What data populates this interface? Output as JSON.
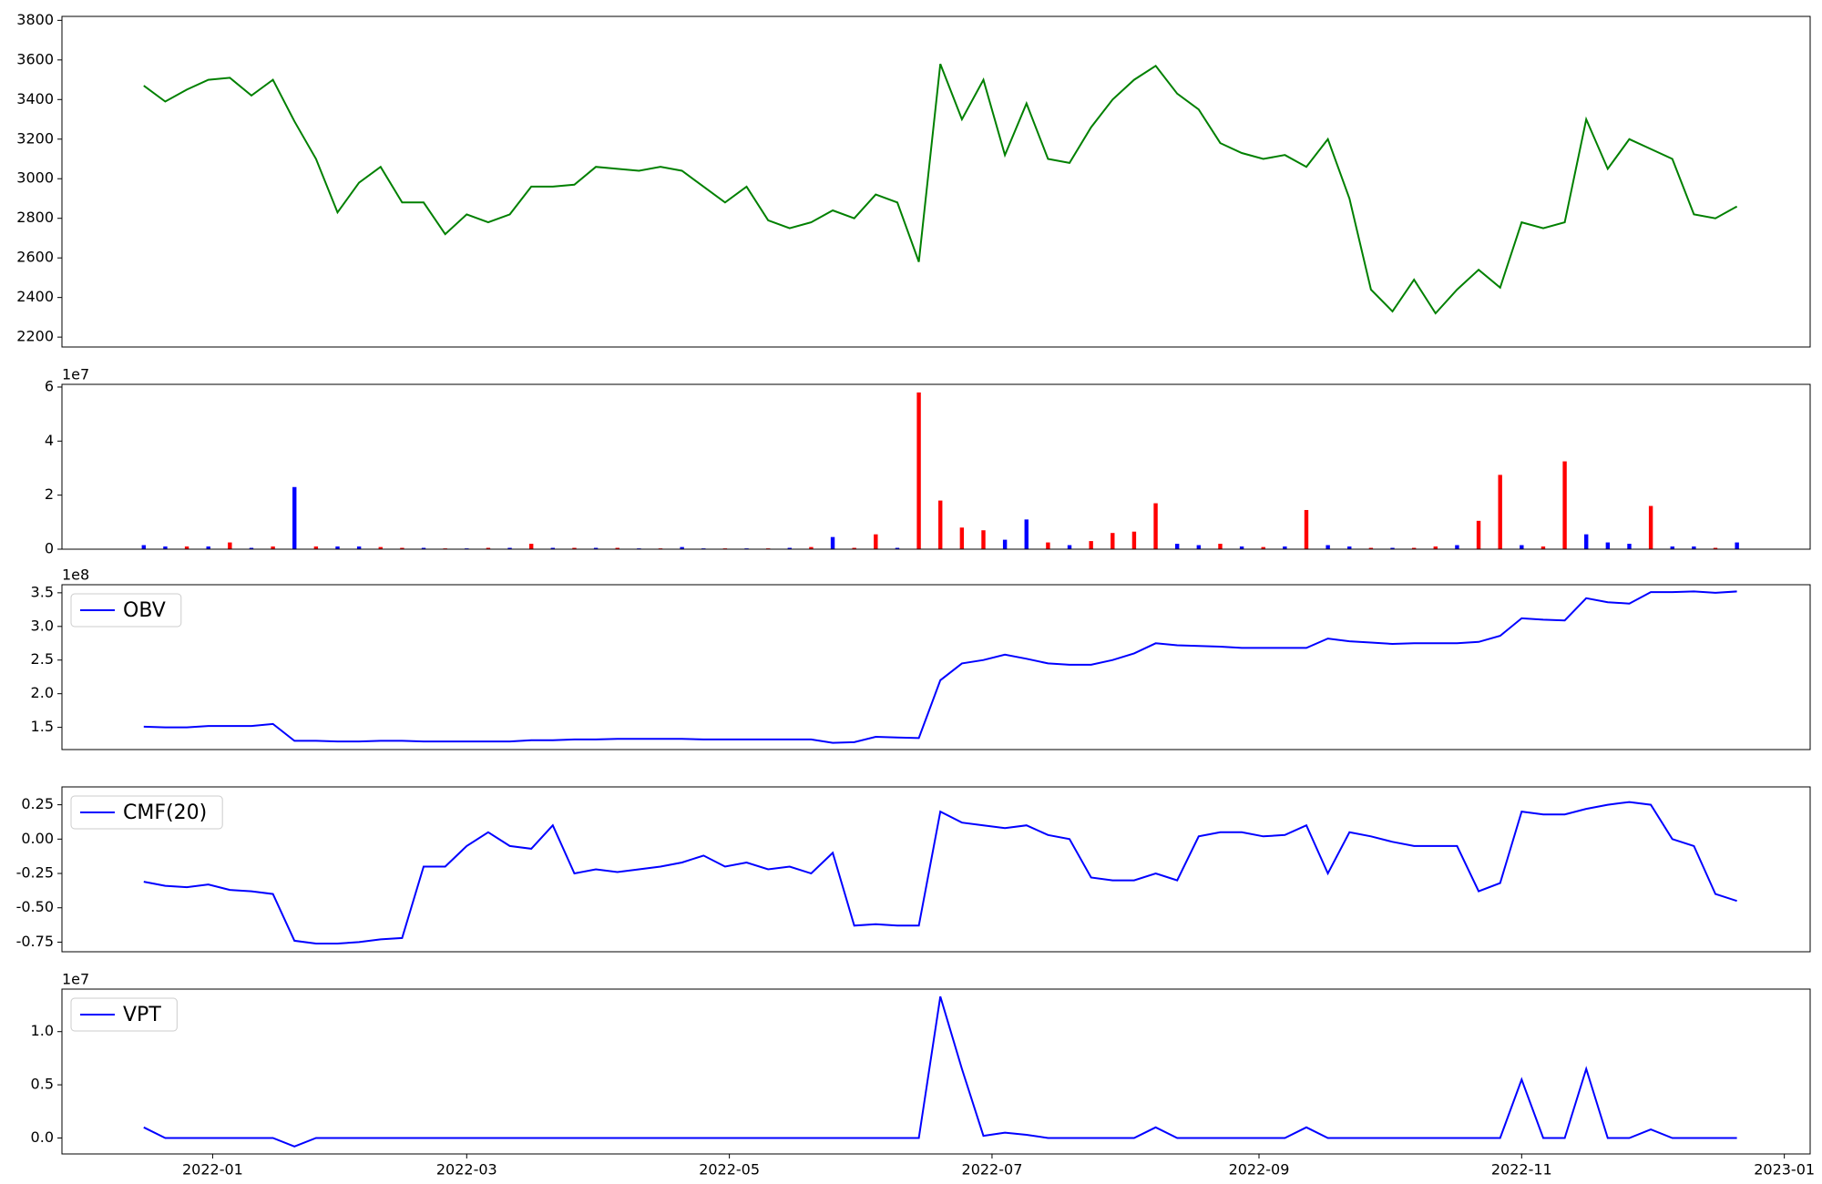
{
  "chart_data": [
    {
      "type": "line",
      "color": "green",
      "x": [
        -16,
        -11,
        -6,
        -1,
        4,
        9,
        14,
        19,
        24,
        29,
        34,
        39,
        44,
        49,
        54,
        59,
        64,
        69,
        74,
        79,
        84,
        89,
        94,
        99,
        104,
        109,
        114,
        119,
        124,
        129,
        134,
        139,
        144,
        149,
        154,
        159,
        164,
        169,
        174,
        179,
        184,
        189,
        194,
        199,
        204,
        209,
        214,
        219,
        224,
        229,
        234,
        239,
        244,
        249,
        254,
        259,
        264,
        269,
        274,
        279,
        284,
        289,
        294,
        299,
        304,
        309,
        314,
        319,
        324,
        329,
        334,
        339,
        344,
        349,
        354
      ],
      "values": [
        3470,
        3390,
        3450,
        3500,
        3510,
        3420,
        3500,
        3290,
        3100,
        2830,
        2980,
        3060,
        2880,
        2880,
        2720,
        2820,
        2780,
        2820,
        2960,
        2960,
        2970,
        3060,
        3050,
        3040,
        3060,
        3040,
        2960,
        2880,
        2960,
        2790,
        2750,
        2780,
        2840,
        2800,
        2920,
        2880,
        2580,
        3580,
        3300,
        3500,
        3120,
        3380,
        3100,
        3080,
        3260,
        3400,
        3500,
        3570,
        3430,
        3350,
        3180,
        3130,
        3100,
        3120,
        3060,
        3200,
        2900,
        2440,
        2330,
        2490,
        2320,
        2440,
        2540,
        2450,
        2780,
        2750,
        2780,
        3300,
        3050,
        3200,
        3150,
        3100,
        2820,
        2800,
        2860
      ],
      "xlim": [
        -35,
        371
      ],
      "ylim": [
        2150,
        3820
      ],
      "yticks": [
        2200,
        2400,
        2600,
        2800,
        3000,
        3200,
        3400,
        3600,
        3800
      ]
    },
    {
      "type": "bar",
      "offset_label": "1e7",
      "x": [
        -16,
        -11,
        -6,
        -1,
        4,
        9,
        14,
        19,
        24,
        29,
        34,
        39,
        44,
        49,
        54,
        59,
        64,
        69,
        74,
        79,
        84,
        89,
        94,
        99,
        104,
        109,
        114,
        119,
        124,
        129,
        134,
        139,
        144,
        149,
        154,
        159,
        164,
        169,
        174,
        179,
        184,
        189,
        194,
        199,
        204,
        209,
        214,
        219,
        224,
        229,
        234,
        239,
        244,
        249,
        254,
        259,
        264,
        269,
        274,
        279,
        284,
        289,
        294,
        299,
        304,
        309,
        314,
        319,
        324,
        329,
        334,
        339,
        344,
        349,
        354
      ],
      "values": [
        0.15,
        0.1,
        0.1,
        0.1,
        0.25,
        0.05,
        0.1,
        2.3,
        0.1,
        0.1,
        0.1,
        0.08,
        0.05,
        0.05,
        0.03,
        0.03,
        0.05,
        0.05,
        0.2,
        0.05,
        0.05,
        0.05,
        0.05,
        0.03,
        0.03,
        0.08,
        0.03,
        0.03,
        0.03,
        0.03,
        0.05,
        0.08,
        0.45,
        0.05,
        0.55,
        0.05,
        5.8,
        1.8,
        0.8,
        0.7,
        0.35,
        1.1,
        0.25,
        0.15,
        0.3,
        0.6,
        0.65,
        1.7,
        0.2,
        0.15,
        0.2,
        0.1,
        0.08,
        0.1,
        1.45,
        0.15,
        0.1,
        0.05,
        0.05,
        0.05,
        0.1,
        0.15,
        1.05,
        2.75,
        0.15,
        0.1,
        3.25,
        0.55,
        0.25,
        0.2,
        1.6,
        0.1,
        0.1,
        0.05,
        0.25
      ],
      "colors": [
        "blue",
        "blue",
        "red",
        "blue",
        "red",
        "blue",
        "red",
        "blue",
        "red",
        "blue",
        "blue",
        "red",
        "red",
        "blue",
        "red",
        "blue",
        "red",
        "blue",
        "red",
        "blue",
        "red",
        "blue",
        "red",
        "blue",
        "red",
        "blue",
        "blue",
        "red",
        "blue",
        "red",
        "blue",
        "red",
        "blue",
        "red",
        "red",
        "blue",
        "red",
        "red",
        "red",
        "red",
        "blue",
        "blue",
        "red",
        "blue",
        "red",
        "red",
        "red",
        "red",
        "blue",
        "blue",
        "red",
        "blue",
        "red",
        "blue",
        "red",
        "blue",
        "blue",
        "red",
        "blue",
        "red",
        "red",
        "blue",
        "red",
        "red",
        "blue",
        "red",
        "red",
        "blue",
        "blue",
        "blue",
        "red",
        "blue",
        "blue",
        "red",
        "blue"
      ],
      "xlim": [
        -35,
        371
      ],
      "ylim": [
        0,
        6.1
      ],
      "yticks": [
        0,
        2,
        4,
        6
      ]
    },
    {
      "type": "line",
      "offset_label": "1e8",
      "legend": "upper left",
      "x": [
        -16,
        -11,
        -6,
        -1,
        4,
        9,
        14,
        19,
        24,
        29,
        34,
        39,
        44,
        49,
        54,
        59,
        64,
        69,
        74,
        79,
        84,
        89,
        94,
        99,
        104,
        109,
        114,
        119,
        124,
        129,
        134,
        139,
        144,
        149,
        154,
        159,
        164,
        169,
        174,
        179,
        184,
        189,
        194,
        199,
        204,
        209,
        214,
        219,
        224,
        229,
        234,
        239,
        244,
        249,
        254,
        259,
        264,
        269,
        274,
        279,
        284,
        289,
        294,
        299,
        304,
        309,
        314,
        319,
        324,
        329,
        334,
        339,
        344,
        349,
        354
      ],
      "series": [
        {
          "name": "OBV",
          "color": "blue",
          "values": [
            1.51,
            1.5,
            1.5,
            1.52,
            1.52,
            1.52,
            1.55,
            1.3,
            1.3,
            1.29,
            1.29,
            1.3,
            1.3,
            1.29,
            1.29,
            1.29,
            1.29,
            1.29,
            1.31,
            1.31,
            1.32,
            1.32,
            1.33,
            1.33,
            1.33,
            1.33,
            1.32,
            1.32,
            1.32,
            1.32,
            1.32,
            1.32,
            1.27,
            1.28,
            1.36,
            1.35,
            1.34,
            2.2,
            2.45,
            2.5,
            2.58,
            2.52,
            2.45,
            2.43,
            2.43,
            2.5,
            2.6,
            2.75,
            2.72,
            2.71,
            2.7,
            2.68,
            2.68,
            2.68,
            2.68,
            2.82,
            2.78,
            2.76,
            2.74,
            2.75,
            2.75,
            2.75,
            2.77,
            2.86,
            3.12,
            3.1,
            3.09,
            3.42,
            3.36,
            3.34,
            3.51,
            3.51,
            3.52,
            3.5,
            3.52
          ]
        }
      ],
      "xlim": [
        -35,
        371
      ],
      "ylim": [
        1.17,
        3.62
      ],
      "yticks": [
        1.5,
        {
          "value": 2,
          "label": "2.0"
        },
        2.5,
        {
          "value": 3,
          "label": "3.0"
        },
        3.5
      ]
    },
    {
      "type": "line",
      "legend": "upper left",
      "x": [
        -16,
        -11,
        -6,
        -1,
        4,
        9,
        14,
        19,
        24,
        29,
        34,
        39,
        44,
        49,
        54,
        59,
        64,
        69,
        74,
        79,
        84,
        89,
        94,
        99,
        104,
        109,
        114,
        119,
        124,
        129,
        134,
        139,
        144,
        149,
        154,
        159,
        164,
        169,
        174,
        179,
        184,
        189,
        194,
        199,
        204,
        209,
        214,
        219,
        224,
        229,
        234,
        239,
        244,
        249,
        254,
        259,
        264,
        269,
        274,
        279,
        284,
        289,
        294,
        299,
        304,
        309,
        314,
        319,
        324,
        329,
        334,
        339,
        344,
        349,
        354
      ],
      "series": [
        {
          "name": "CMF(20)",
          "color": "blue",
          "values": [
            -0.31,
            -0.34,
            -0.35,
            -0.33,
            -0.37,
            -0.38,
            -0.4,
            -0.74,
            -0.76,
            -0.76,
            -0.75,
            -0.73,
            -0.72,
            -0.2,
            -0.2,
            -0.05,
            0.05,
            -0.05,
            -0.07,
            0.1,
            -0.25,
            -0.22,
            -0.24,
            -0.22,
            -0.2,
            -0.17,
            -0.12,
            -0.2,
            -0.17,
            -0.22,
            -0.2,
            -0.25,
            -0.1,
            -0.63,
            -0.62,
            -0.63,
            -0.63,
            0.2,
            0.12,
            0.1,
            0.08,
            0.1,
            0.03,
            0.0,
            -0.28,
            -0.3,
            -0.3,
            -0.25,
            -0.3,
            0.02,
            0.05,
            0.05,
            0.02,
            0.03,
            0.1,
            -0.25,
            0.05,
            0.02,
            -0.02,
            -0.05,
            -0.05,
            -0.05,
            -0.38,
            -0.32,
            0.2,
            0.18,
            0.18,
            0.22,
            0.25,
            0.27,
            0.25,
            0.0,
            -0.05,
            -0.4,
            -0.45
          ]
        }
      ],
      "xlim": [
        -35,
        371
      ],
      "ylim": [
        -0.82,
        0.38
      ],
      "yticks": [
        -0.75,
        {
          "value": -0.5,
          "label": "-0.50"
        },
        -0.25,
        {
          "value": 0,
          "label": "0.00"
        },
        0.25
      ]
    },
    {
      "type": "line",
      "offset_label": "1e7",
      "legend": "upper left",
      "x": [
        -16,
        -11,
        -6,
        -1,
        4,
        9,
        14,
        19,
        24,
        29,
        34,
        39,
        44,
        49,
        54,
        59,
        64,
        69,
        74,
        79,
        84,
        89,
        94,
        99,
        104,
        109,
        114,
        119,
        124,
        129,
        134,
        139,
        144,
        149,
        154,
        159,
        164,
        169,
        174,
        179,
        184,
        189,
        194,
        199,
        204,
        209,
        214,
        219,
        224,
        229,
        234,
        239,
        244,
        249,
        254,
        259,
        264,
        269,
        274,
        279,
        284,
        289,
        294,
        299,
        304,
        309,
        314,
        319,
        324,
        329,
        334,
        339,
        344,
        349,
        354
      ],
      "series": [
        {
          "name": "VPT",
          "color": "blue",
          "values": [
            0.1,
            0,
            0,
            0,
            0,
            0,
            0,
            -0.08,
            0,
            0,
            0,
            0,
            0,
            0,
            0,
            0,
            0,
            0,
            0,
            0,
            0,
            0,
            0,
            0,
            0,
            0,
            0,
            0,
            0,
            0,
            0,
            0,
            0,
            0,
            0,
            0,
            0,
            1.33,
            0.65,
            0.02,
            0.05,
            0.03,
            0,
            0,
            0,
            0,
            0,
            0.1,
            0,
            0,
            0,
            0,
            0,
            0,
            0.1,
            0,
            0,
            0,
            0,
            0,
            0,
            0,
            0,
            0,
            0.55,
            0,
            0,
            0.65,
            0,
            0,
            0.08,
            0,
            0,
            0,
            0
          ]
        }
      ],
      "xlim": [
        -35,
        371
      ],
      "ylim": [
        -0.15,
        1.4
      ],
      "yticks": [
        {
          "value": 0,
          "label": "0.0"
        },
        0.5,
        {
          "value": 1,
          "label": "1.0"
        }
      ],
      "xticks": [
        {
          "value": 0,
          "label": "2022-01"
        },
        {
          "value": 59,
          "label": "2022-03"
        },
        {
          "value": 120,
          "label": "2022-05"
        },
        {
          "value": 181,
          "label": "2022-07"
        },
        {
          "value": 243,
          "label": "2022-09"
        },
        {
          "value": 304,
          "label": "2022-11"
        },
        {
          "value": 365,
          "label": "2023-01"
        }
      ]
    }
  ]
}
